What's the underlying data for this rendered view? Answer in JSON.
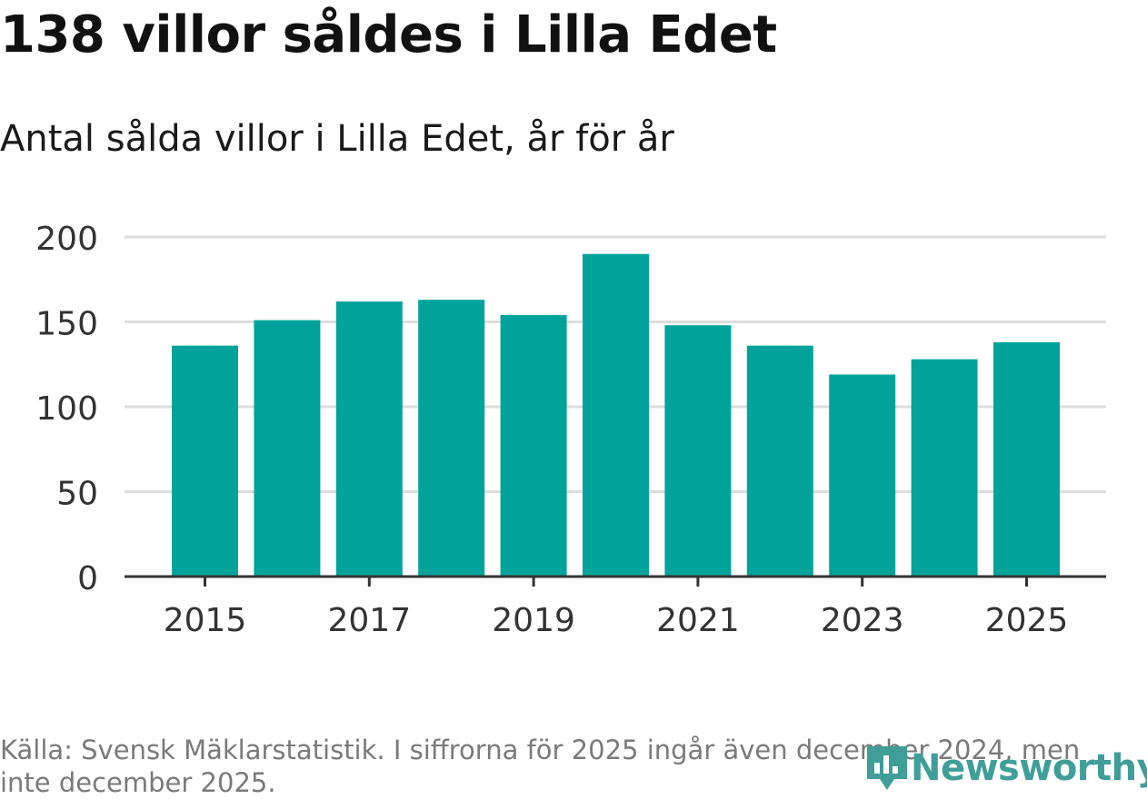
{
  "title": "138 villor såldes i Lilla Edet",
  "subtitle": "Antal sålda villor i Lilla Edet, år för år",
  "footer": "Källa: Svensk Mäklarstatistik. I siffrorna för 2025 ingår även december 2024, men inte december 2025.",
  "brand": "Newsworthy",
  "colors": {
    "bar": "#00a39a",
    "grid": "#dddddd",
    "axis": "#333333",
    "brand": "#3f9e98"
  },
  "chart_data": {
    "type": "bar",
    "title": "138 villor såldes i Lilla Edet",
    "subtitle": "Antal sålda villor i Lilla Edet, år för år",
    "xlabel": "",
    "ylabel": "",
    "categories": [
      "2015",
      "2016",
      "2017",
      "2018",
      "2019",
      "2020",
      "2021",
      "2022",
      "2023",
      "2024",
      "2025"
    ],
    "values": [
      136,
      151,
      162,
      163,
      154,
      190,
      148,
      136,
      119,
      128,
      138
    ],
    "x_tick_labels": [
      "2015",
      "2017",
      "2019",
      "2021",
      "2023",
      "2025"
    ],
    "y_ticks": [
      0,
      50,
      100,
      150,
      200
    ],
    "ylim": [
      0,
      200
    ],
    "grid": true,
    "legend": "none"
  }
}
